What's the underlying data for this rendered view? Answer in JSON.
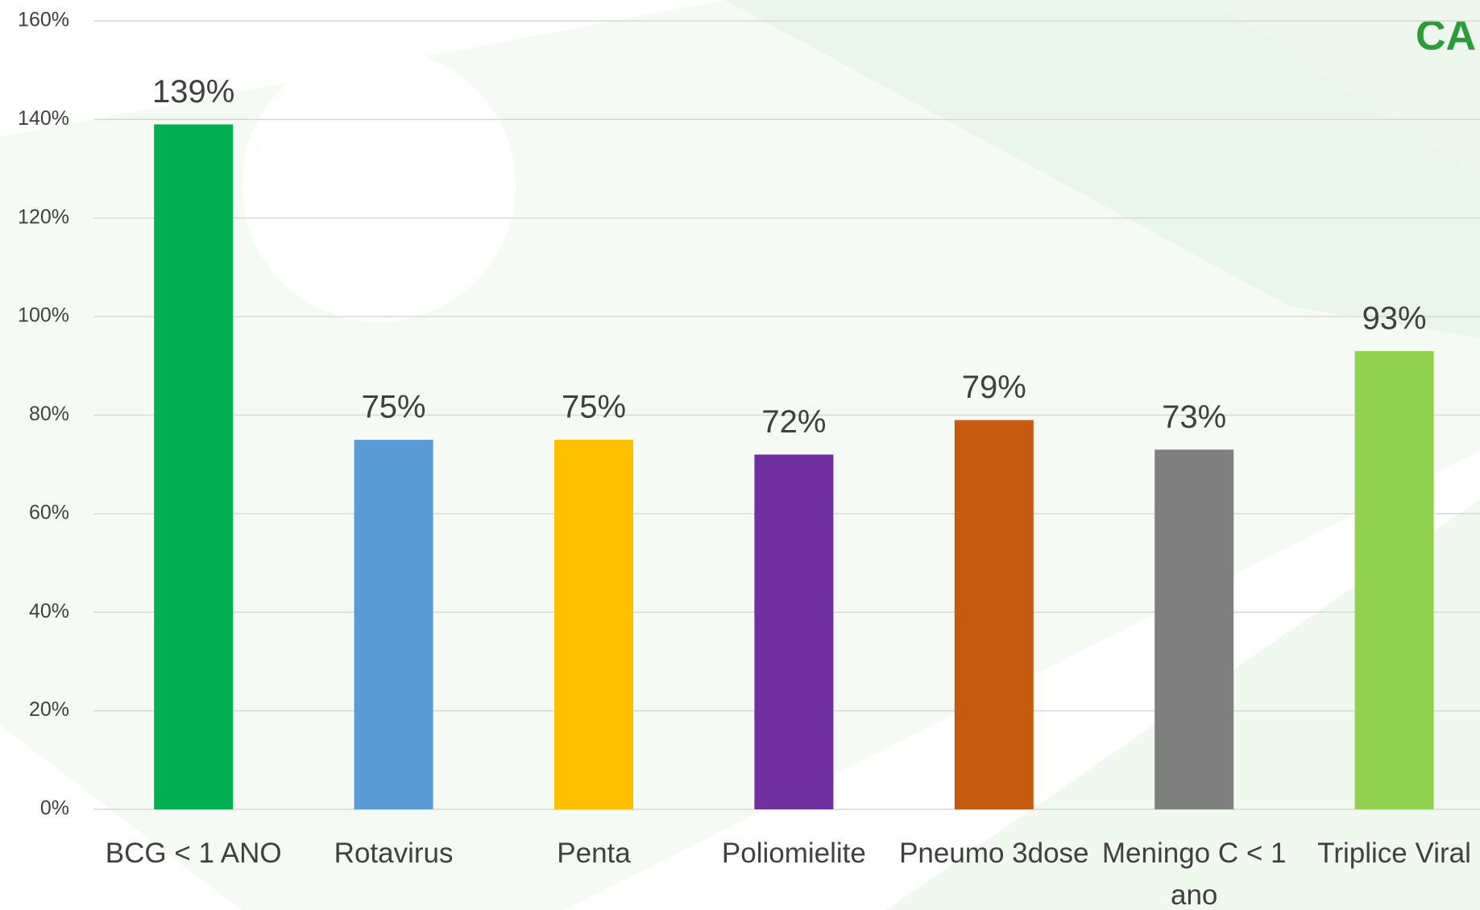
{
  "chart_data": {
    "type": "bar",
    "logo": "CA",
    "categories": [
      "BCG < 1 ANO",
      "Rotavirus",
      "Penta",
      "Poliomielite",
      "Pneumo 3dose",
      "Meningo C < 1 ano",
      "Triplice Viral"
    ],
    "values": [
      139,
      75,
      75,
      72,
      79,
      73,
      93
    ],
    "value_labels": [
      "139%",
      "75%",
      "75%",
      "72%",
      "79%",
      "73%",
      "93%"
    ],
    "colors": [
      "#00b050",
      "#5b9bd5",
      "#ffc000",
      "#7030a0",
      "#c55a11",
      "#7f7f7f",
      "#92d050"
    ],
    "ylim": [
      0,
      160
    ],
    "yticks": [
      {
        "value": 0,
        "label": "0%"
      },
      {
        "value": 20,
        "label": "20%"
      },
      {
        "value": 40,
        "label": "40%"
      },
      {
        "value": 60,
        "label": "60%"
      },
      {
        "value": 80,
        "label": "80%"
      },
      {
        "value": 100,
        "label": "100%"
      },
      {
        "value": 120,
        "label": "120%"
      },
      {
        "value": 140,
        "label": "140%"
      },
      {
        "value": 160,
        "label": "160%"
      }
    ],
    "grid": true
  }
}
